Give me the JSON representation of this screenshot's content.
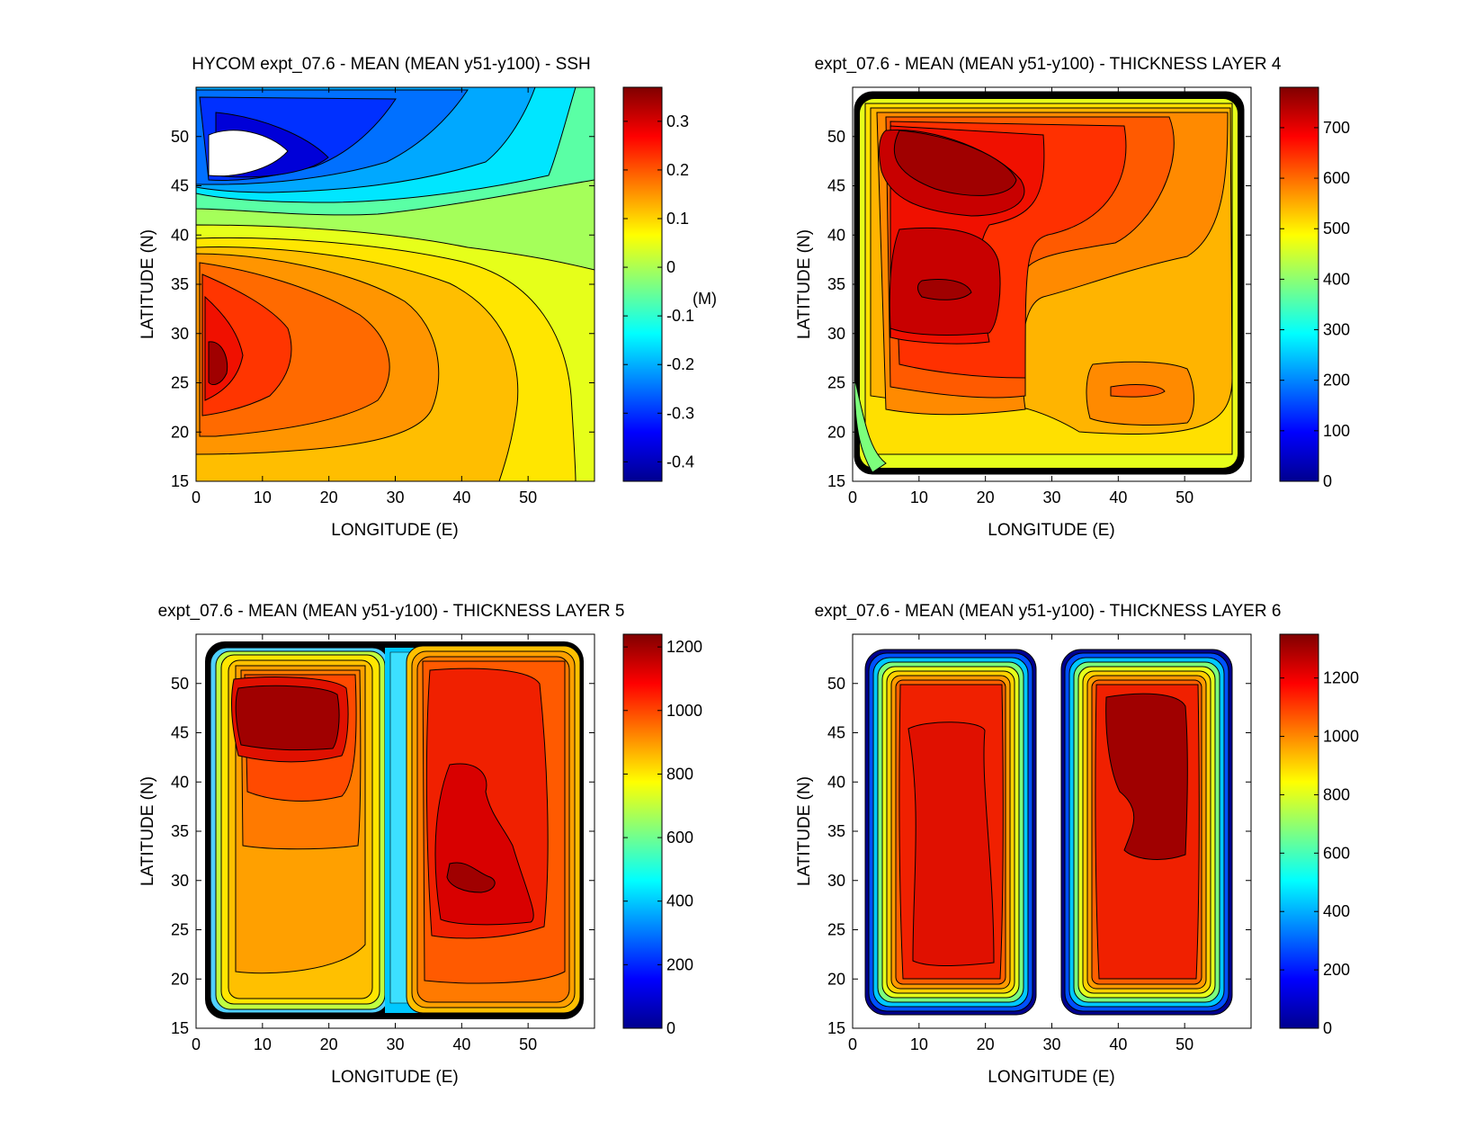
{
  "chart_data": [
    {
      "type": "heatmap",
      "title": "HYCOM expt_07.6 - MEAN (MEAN y51-y100) - SSH",
      "xlabel": "LONGITUDE (E)",
      "ylabel": "LATITUDE (N)",
      "xlim": [
        0,
        60
      ],
      "ylim": [
        15,
        55
      ],
      "xticks": [
        "0",
        "10",
        "20",
        "30",
        "40",
        "50"
      ],
      "yticks": [
        "15",
        "20",
        "25",
        "30",
        "35",
        "40",
        "45",
        "50"
      ],
      "colorbar": {
        "range": [
          -0.44,
          0.37
        ],
        "ticks": [
          "-0.4",
          "-0.3",
          "-0.2",
          "-0.1",
          "0",
          "0.1",
          "0.2",
          "0.3"
        ],
        "unit": "(M)"
      },
      "features": [
        {
          "kind": "high",
          "lon": 3,
          "lat": 25.5,
          "value": 0.36
        },
        {
          "kind": "low",
          "lon": 10,
          "lat": 47,
          "value": -0.42
        },
        {
          "kind": "land",
          "lon": 5,
          "lat": 48.5
        }
      ]
    },
    {
      "type": "heatmap",
      "title": "expt_07.6 - MEAN (MEAN y51-y100) - THICKNESS LAYER 4",
      "xlabel": "LONGITUDE (E)",
      "ylabel": "LATITUDE (N)",
      "xlim": [
        0,
        60
      ],
      "ylim": [
        15,
        55
      ],
      "xticks": [
        "0",
        "10",
        "20",
        "30",
        "40",
        "50"
      ],
      "yticks": [
        "15",
        "20",
        "25",
        "30",
        "35",
        "40",
        "45",
        "50"
      ],
      "colorbar": {
        "range": [
          0,
          780
        ],
        "ticks": [
          "0",
          "100",
          "200",
          "300",
          "400",
          "500",
          "600",
          "700"
        ]
      },
      "features": [
        {
          "kind": "max",
          "lon": 15,
          "lat": 47,
          "value": 740
        },
        {
          "kind": "max",
          "lon": 14,
          "lat": 34,
          "value": 730
        },
        {
          "kind": "local-high",
          "lon": 44,
          "lat": 24,
          "value": 640
        }
      ]
    },
    {
      "type": "heatmap",
      "title": "expt_07.6 - MEAN (MEAN y51-y100) - THICKNESS LAYER 5",
      "xlabel": "LONGITUDE (E)",
      "ylabel": "LATITUDE (N)",
      "xlim": [
        0,
        60
      ],
      "ylim": [
        15,
        55
      ],
      "xticks": [
        "0",
        "10",
        "20",
        "30",
        "40",
        "50"
      ],
      "yticks": [
        "15",
        "20",
        "25",
        "30",
        "35",
        "40",
        "45",
        "50"
      ],
      "colorbar": {
        "range": [
          0,
          1240
        ],
        "ticks": [
          "0",
          "200",
          "400",
          "600",
          "800",
          "1000",
          "1200"
        ]
      },
      "features": [
        {
          "kind": "max",
          "lon": 15,
          "lat": 46,
          "value": 1200
        },
        {
          "kind": "max",
          "lon": 42,
          "lat": 30,
          "value": 1150
        },
        {
          "kind": "trough",
          "lon": 30,
          "lat": 35,
          "value": 400
        }
      ]
    },
    {
      "type": "heatmap",
      "title": "expt_07.6 - MEAN (MEAN y51-y100) - THICKNESS LAYER 6",
      "xlabel": "LONGITUDE (E)",
      "ylabel": "LATITUDE (N)",
      "xlim": [
        0,
        60
      ],
      "ylim": [
        15,
        55
      ],
      "xticks": [
        "0",
        "10",
        "20",
        "30",
        "40",
        "50"
      ],
      "yticks": [
        "15",
        "20",
        "25",
        "30",
        "35",
        "40",
        "45",
        "50"
      ],
      "colorbar": {
        "range": [
          0,
          1350
        ],
        "ticks": [
          "0",
          "200",
          "400",
          "600",
          "800",
          "1000",
          "1200"
        ]
      },
      "features": [
        {
          "kind": "max",
          "lon": 16,
          "lat": 36,
          "value": 1200
        },
        {
          "kind": "max",
          "lon": 43,
          "lat": 43,
          "value": 1300
        }
      ]
    }
  ]
}
